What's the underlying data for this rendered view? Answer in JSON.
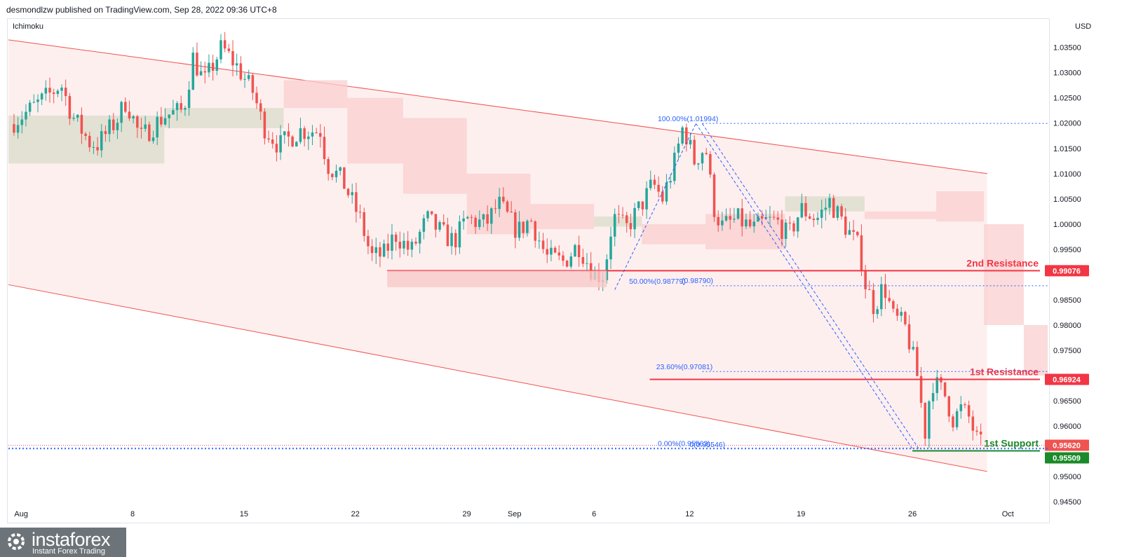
{
  "header": {
    "publisher": "desmondlzw published on TradingView.com, Sep 28, 2022 09:36 UTC+8",
    "indicator": "Ichimoku",
    "currency": "USD"
  },
  "brand": {
    "name": "instaforex",
    "tagline": "Instant Forex Trading",
    "color": "#6d7479"
  },
  "colors": {
    "up": "#26a69a",
    "down": "#ef5350",
    "resistance": "#f23645",
    "support": "#1b8a2a",
    "fib": "#2962ff",
    "channel": "#fde8e8"
  },
  "chart_data": {
    "type": "candlestick",
    "symbol_quote": "USD",
    "indicator": "Ichimoku",
    "ylim": [
      0.941,
      1.0405
    ],
    "y_ticks": [
      1.035,
      1.03,
      1.025,
      1.02,
      1.015,
      1.01,
      1.005,
      1.0,
      0.995,
      0.985,
      0.98,
      0.975,
      0.965,
      0.96,
      0.95,
      0.945
    ],
    "y_tick_labels": [
      "1.03500",
      "1.03000",
      "1.02500",
      "1.02000",
      "1.01500",
      "1.01000",
      "1.00500",
      "1.00000",
      "0.99500",
      "0.98500",
      "0.98000",
      "0.97500",
      "0.96500",
      "0.96000",
      "0.95000",
      "0.94500"
    ],
    "x_labels": [
      {
        "label": "Aug",
        "day": 1
      },
      {
        "label": "8",
        "day": 8
      },
      {
        "label": "15",
        "day": 15
      },
      {
        "label": "22",
        "day": 22
      },
      {
        "label": "29",
        "day": 29
      },
      {
        "label": "Sep",
        "day": 32
      },
      {
        "label": "6",
        "day": 37
      },
      {
        "label": "12",
        "day": 43
      },
      {
        "label": "19",
        "day": 50
      },
      {
        "label": "26",
        "day": 57
      },
      {
        "label": "Oct",
        "day": 63
      }
    ],
    "xlim_days": [
      0.2,
      65.5
    ],
    "price_path": [
      [
        0.3,
        1.0198
      ],
      [
        1.5,
        1.0225
      ],
      [
        3.0,
        1.0262
      ],
      [
        3.5,
        1.0278
      ],
      [
        4.2,
        1.0215
      ],
      [
        5.3,
        1.0162
      ],
      [
        5.8,
        1.0158
      ],
      [
        7.0,
        1.0205
      ],
      [
        7.6,
        1.0245
      ],
      [
        8.5,
        1.017
      ],
      [
        10.0,
        1.0215
      ],
      [
        11.2,
        1.0225
      ],
      [
        11.8,
        1.033
      ],
      [
        12.5,
        1.028
      ],
      [
        13.6,
        1.035
      ],
      [
        14.5,
        1.0315
      ],
      [
        15.6,
        1.026
      ],
      [
        16.2,
        1.0195
      ],
      [
        17.2,
        1.0155
      ],
      [
        18.5,
        1.0185
      ],
      [
        19.8,
        1.0185
      ],
      [
        20.2,
        1.012
      ],
      [
        21.2,
        1.0085
      ],
      [
        22.3,
        1.001
      ],
      [
        23.0,
        0.9935
      ],
      [
        23.8,
        0.994
      ],
      [
        24.5,
        0.998
      ],
      [
        25.5,
        0.9945
      ],
      [
        26.5,
        1.001
      ],
      [
        27.5,
        0.998
      ],
      [
        28.2,
        0.9965
      ],
      [
        29.0,
        1.001
      ],
      [
        30.2,
        1.0
      ],
      [
        31.0,
        1.004
      ],
      [
        32.2,
        0.9985
      ],
      [
        33.0,
        1.001
      ],
      [
        34.0,
        0.9935
      ],
      [
        35.1,
        0.9925
      ],
      [
        36.0,
        0.996
      ],
      [
        37.0,
        0.99
      ],
      [
        37.6,
        0.99
      ],
      [
        38.2,
        1.0015
      ],
      [
        39.0,
        0.999
      ],
      [
        40.0,
        1.004
      ],
      [
        40.7,
        1.008
      ],
      [
        41.3,
        1.005
      ],
      [
        42.0,
        1.0115
      ],
      [
        42.6,
        1.0195
      ],
      [
        43.3,
        1.0125
      ],
      [
        44.0,
        1.0155
      ],
      [
        44.5,
        1.0035
      ],
      [
        45.0,
        0.9995
      ],
      [
        46.0,
        1.001
      ],
      [
        47.0,
        0.999
      ],
      [
        47.8,
        1.0005
      ],
      [
        48.5,
        1.0005
      ],
      [
        49.2,
        0.9975
      ],
      [
        50.0,
        1.003
      ],
      [
        51.0,
        1.001
      ],
      [
        51.8,
        1.0045
      ],
      [
        52.5,
        1.001
      ],
      [
        53.0,
        0.9985
      ],
      [
        53.7,
        0.995
      ],
      [
        54.0,
        0.9885
      ],
      [
        54.6,
        0.9835
      ],
      [
        55.2,
        0.988
      ],
      [
        55.8,
        0.9815
      ],
      [
        56.5,
        0.98
      ],
      [
        56.9,
        0.9755
      ],
      [
        57.3,
        0.97
      ],
      [
        57.8,
        0.9588
      ],
      [
        58.2,
        0.969
      ],
      [
        59.0,
        0.9665
      ],
      [
        59.6,
        0.961
      ],
      [
        60.0,
        0.9635
      ],
      [
        60.6,
        0.9615
      ],
      [
        61.0,
        0.9575
      ],
      [
        61.4,
        0.9558
      ]
    ],
    "ichimoku_cloud": [
      {
        "start": 0.2,
        "end": 10.0,
        "top": 1.0215,
        "bottom": 1.012
      },
      {
        "start": 10.0,
        "end": 17.5,
        "top": 1.023,
        "bottom": 1.019
      },
      {
        "start": 17.5,
        "end": 21.5,
        "top": 1.0285,
        "bottom": 1.023
      },
      {
        "start": 21.5,
        "end": 25.0,
        "top": 1.025,
        "bottom": 1.012
      },
      {
        "start": 25.0,
        "end": 29.0,
        "top": 1.021,
        "bottom": 1.006
      },
      {
        "start": 29.0,
        "end": 33.0,
        "top": 1.01,
        "bottom": 0.998
      },
      {
        "start": 33.0,
        "end": 37.0,
        "top": 1.004,
        "bottom": 0.999
      },
      {
        "start": 37.0,
        "end": 40.0,
        "top": 1.0015,
        "bottom": 0.9995
      },
      {
        "start": 40.0,
        "end": 44.0,
        "top": 1.0,
        "bottom": 0.996
      },
      {
        "start": 44.0,
        "end": 49.0,
        "top": 1.002,
        "bottom": 0.995
      },
      {
        "start": 49.0,
        "end": 54.0,
        "top": 1.0055,
        "bottom": 1.0025
      },
      {
        "start": 54.0,
        "end": 58.5,
        "top": 1.0025,
        "bottom": 1.001
      },
      {
        "start": 58.5,
        "end": 61.5,
        "top": 1.0065,
        "bottom": 1.0005
      },
      {
        "start": 61.5,
        "end": 64.0,
        "top": 1.0,
        "bottom": 0.98
      },
      {
        "start": 64.0,
        "end": 65.5,
        "top": 0.98,
        "bottom": 0.97
      }
    ],
    "channel": {
      "upper": [
        [
          0.2,
          1.0365
        ],
        [
          61.7,
          1.01
        ]
      ],
      "lower": [
        [
          0.2,
          0.988
        ],
        [
          61.7,
          0.951
        ]
      ]
    },
    "levels": [
      {
        "label": "2nd Resistance",
        "value": 0.99076,
        "tag": "0.99076",
        "from_day": 24.0,
        "color": "#f23645"
      },
      {
        "label": "1st Resistance",
        "value": 0.96924,
        "tag": "0.96924",
        "from_day": 40.5,
        "color": "#f23645"
      },
      {
        "label": "1st Support",
        "value": 0.95509,
        "tag": "0.95509",
        "from_day": 57.0,
        "color": "#1b8a2a"
      }
    ],
    "current_price": {
      "value": 0.9562,
      "tag": "0.95620"
    },
    "fibonacci": [
      {
        "label": "100.00%(1.01994)",
        "value": 1.01994
      },
      {
        "label": "50.00%(0.98779)",
        "value": 0.98779
      },
      {
        "label": "(0.98790)",
        "value": 0.9879
      },
      {
        "label": "23.60%(0.97081)",
        "value": 0.97081
      },
      {
        "label": "0.00%(0.95563)",
        "value": 0.95563
      },
      {
        "label": "0(0.95546)",
        "value": 0.95546
      }
    ]
  }
}
